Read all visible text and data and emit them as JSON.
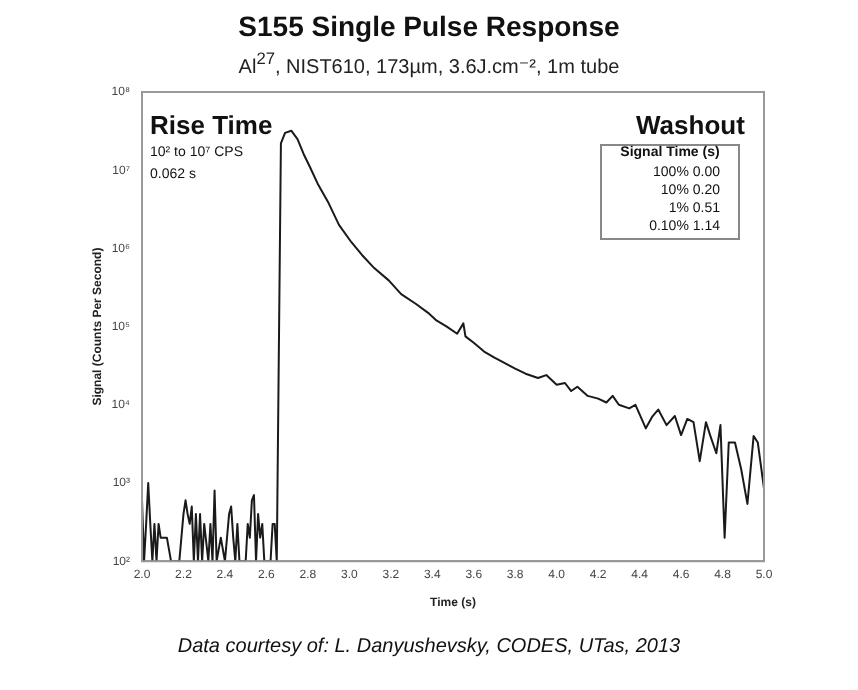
{
  "chart_data": {
    "type": "line",
    "title": "S155 Single Pulse Response",
    "subtitle": "Al$^{27}$, NIST610, 173µm, 3.6J.cm⁻², 1m tube",
    "xlabel": "Time (s)",
    "ylabel": "Signal (Counts Per Second)",
    "annotations": [
      "Rise Time",
      "10² to 10⁷ CPS",
      "0.062 s",
      "Washout",
      "Signal Time (s)",
      "100% 0.00",
      "10% 0.20",
      "1% 0.51",
      "0.10% 1.14",
      "Data courtesy of: L. Danyushevsky, CODES, UTas, 2013"
    ],
    "x": [
      2.0,
      2.01,
      2.02,
      2.03,
      2.04,
      2.05,
      2.06,
      2.07,
      2.08,
      2.09,
      2.1,
      2.12,
      2.14,
      2.16,
      2.18,
      2.2,
      2.21,
      2.22,
      2.23,
      2.24,
      2.25,
      2.26,
      2.27,
      2.28,
      2.29,
      2.3,
      2.32,
      2.33,
      2.34,
      2.35,
      2.36,
      2.38,
      2.4,
      2.41,
      2.42,
      2.43,
      2.44,
      2.45,
      2.46,
      2.47,
      2.48,
      2.5,
      2.51,
      2.52,
      2.53,
      2.54,
      2.55,
      2.56,
      2.57,
      2.58,
      2.59,
      2.6,
      2.62,
      2.63,
      2.64,
      2.65,
      2.67,
      2.69,
      2.72,
      2.75,
      2.78,
      2.81,
      2.85,
      2.9,
      2.95,
      3.01,
      3.06,
      3.12,
      3.19,
      3.25,
      3.32,
      3.38,
      3.42,
      3.47,
      3.52,
      3.55,
      3.56,
      3.6,
      3.65,
      3.7,
      3.75,
      3.8,
      3.85,
      3.91,
      3.95,
      4.0,
      4.04,
      4.07,
      4.1,
      4.15,
      4.2,
      4.24,
      4.27,
      4.3,
      4.35,
      4.38,
      4.43,
      4.46,
      4.49,
      4.53,
      4.57,
      4.6,
      4.63,
      4.66,
      4.69,
      4.72,
      4.74,
      4.77,
      4.79,
      4.81,
      4.83,
      4.86,
      4.89,
      4.92,
      4.95,
      4.97,
      5.0
    ],
    "series": [
      {
        "color": "#1a1a1a",
        "values": [
          600,
          100,
          300,
          1000,
          300,
          100,
          300,
          100,
          300,
          200,
          200,
          200,
          100,
          100,
          100,
          400,
          600,
          400,
          300,
          500,
          100,
          400,
          100,
          400,
          100,
          300,
          100,
          300,
          100,
          800,
          100,
          200,
          100,
          200,
          400,
          500,
          200,
          100,
          300,
          100,
          100,
          100,
          300,
          200,
          600,
          700,
          100,
          400,
          200,
          300,
          100,
          100,
          100,
          300,
          300,
          100,
          22000000,
          30000000,
          32000000,
          25000000,
          16000000,
          11000000,
          6500000,
          3800000,
          2000000,
          1200000,
          830000,
          560000,
          390000,
          260000,
          196000,
          150000,
          120000,
          100000,
          81000,
          110000,
          75000,
          62000,
          48000,
          40000,
          34000,
          29000,
          25000,
          22000,
          24000,
          18000,
          19000,
          15000,
          17000,
          13000,
          12000,
          10700,
          13000,
          10000,
          9000,
          10000,
          5000,
          7000,
          8700,
          5500,
          7200,
          4100,
          6600,
          6000,
          1900,
          6000,
          4100,
          2400,
          5500,
          200,
          3300,
          3300,
          1500,
          540,
          4000,
          3300,
          850
        ]
      }
    ],
    "xlim": [
      2.0,
      5.0
    ],
    "ylim": [
      100,
      100000000
    ],
    "xticks": [
      {
        "value": 2.0,
        "label": "2.0"
      },
      {
        "value": 2.2,
        "label": "2.2"
      },
      {
        "value": 2.4,
        "label": "2.4"
      },
      {
        "value": 2.6,
        "label": "2.6"
      },
      {
        "value": 2.8,
        "label": "2.8"
      },
      {
        "value": 3.0,
        "label": "3.0"
      },
      {
        "value": 3.2,
        "label": "3.2"
      },
      {
        "value": 3.4,
        "label": "3.4"
      },
      {
        "value": 3.6,
        "label": "3.6"
      },
      {
        "value": 3.8,
        "label": "3.8"
      },
      {
        "value": 4.0,
        "label": "4.0"
      },
      {
        "value": 4.2,
        "label": "4.2"
      },
      {
        "value": 4.4,
        "label": "4.4"
      },
      {
        "value": 4.6,
        "label": "4.6"
      },
      {
        "value": 4.8,
        "label": "4.8"
      },
      {
        "value": 5.0,
        "label": "5.0"
      }
    ],
    "yticks": [
      {
        "value": 100,
        "label": "10²"
      },
      {
        "value": 1000,
        "label": "10³"
      },
      {
        "value": 10000,
        "label": "10⁴"
      },
      {
        "value": 100000,
        "label": "10⁵"
      },
      {
        "value": 1000000,
        "label": "10⁶"
      },
      {
        "value": 10000000,
        "label": "10⁷"
      },
      {
        "value": 100000000,
        "label": "10⁸"
      }
    ],
    "log": "y",
    "grid": false,
    "legend": false,
    "marker": "none",
    "line_style": "solid"
  }
}
